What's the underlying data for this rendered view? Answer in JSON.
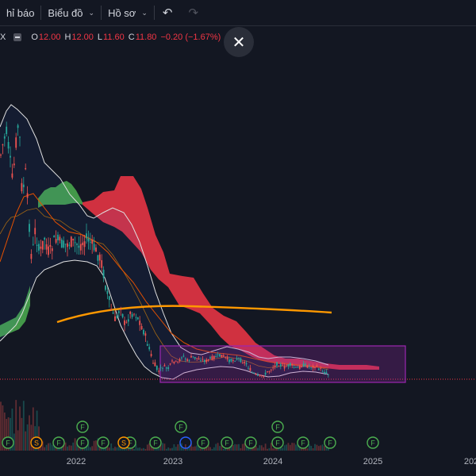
{
  "toolbar": {
    "indicators_label": "hỉ báo",
    "charts_label": "Biểu đồ",
    "profile_label": "Hồ sơ"
  },
  "legend": {
    "symbol": "X",
    "open_label": "O",
    "open": "12.00",
    "high_label": "H",
    "high": "12.00",
    "low_label": "L",
    "low": "11.60",
    "close_label": "C",
    "close": "11.80",
    "change": "−0.20 (−1.67%)"
  },
  "colors": {
    "background": "#131722",
    "up": "#26a69a",
    "down": "#ef5350",
    "kumo_bull": "#4caf50",
    "kumo_bear": "#f23645",
    "ma200": "#ff9800",
    "bollinger": "#e0e0e0",
    "range_box": "#9c27b0"
  },
  "icons": {
    "undo": "undo-icon",
    "redo": "redo-icon",
    "close": "close-icon"
  },
  "x_axis": {
    "ticks": [
      "2022",
      "2023",
      "2024",
      "2025",
      "202"
    ]
  },
  "chart_data": {
    "type": "candlestick",
    "x_ticks": [
      "2022",
      "2023",
      "2024",
      "2025",
      "202"
    ],
    "range_box": {
      "from": "2022-09",
      "to": "2025-05"
    },
    "events": [
      {
        "label": "F"
      },
      {
        "label": "F"
      },
      {
        "label": "F"
      },
      {
        "label": "F"
      },
      {
        "label": "F"
      },
      {
        "label": "F"
      },
      {
        "label": "F"
      },
      {
        "label": "F"
      },
      {
        "label": "F"
      },
      {
        "label": "F"
      },
      {
        "label": "F"
      },
      {
        "label": "F"
      },
      {
        "label": "F"
      },
      {
        "label": "F"
      },
      {
        "label": "F"
      },
      {
        "label": "F"
      },
      {
        "label": "S"
      },
      {
        "label": "S"
      }
    ]
  }
}
